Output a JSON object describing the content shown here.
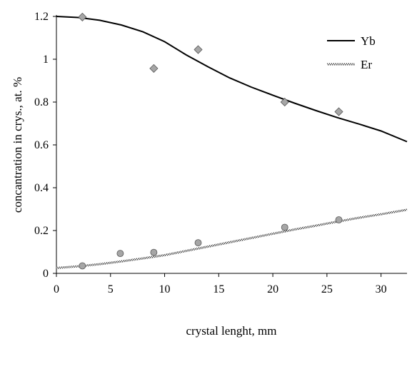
{
  "chart_data": {
    "type": "scatter",
    "title": "",
    "xlabel": "crystal lenght, mm",
    "ylabel": "concantration in crys., at. %",
    "xlim": [
      0,
      32.4
    ],
    "ylim": [
      0,
      1.2
    ],
    "xticks": [
      0,
      5,
      10,
      15,
      20,
      25,
      30
    ],
    "xtick_labels": [
      "0",
      "5",
      "10",
      "15",
      "20",
      "25",
      "30"
    ],
    "yticks": [
      0,
      0.2,
      0.4,
      0.6,
      0.8,
      1,
      1.2
    ],
    "ytick_labels": [
      "0",
      "0.2",
      "0.4",
      "0.6",
      "0.8",
      "1",
      "1.2"
    ],
    "grid": false,
    "legend_position": "top-right",
    "legend": [
      {
        "label": "Yb",
        "series": "Yb-fit"
      },
      {
        "label": "Er",
        "series": "Er-fit"
      }
    ],
    "series": [
      {
        "id": "Yb-data",
        "kind": "scatter",
        "marker": "diamond",
        "color": "#a6a6a6",
        "x": [
          2.4,
          9.0,
          13.1,
          21.1,
          26.1
        ],
        "y": [
          1.197,
          0.957,
          1.045,
          0.8,
          0.755
        ]
      },
      {
        "id": "Er-data",
        "kind": "scatter",
        "marker": "circle",
        "color": "#a6a6a6",
        "x": [
          2.4,
          5.9,
          9.0,
          13.1,
          21.1,
          26.1
        ],
        "y": [
          0.035,
          0.093,
          0.098,
          0.143,
          0.215,
          0.25
        ]
      },
      {
        "id": "Yb-fit",
        "kind": "line",
        "style": "solid",
        "color": "#000000",
        "x": [
          0,
          2,
          4,
          6,
          8,
          10,
          12,
          14,
          16,
          18,
          20,
          22,
          24,
          26,
          28,
          30,
          32.4
        ],
        "y": [
          1.2,
          1.195,
          1.182,
          1.16,
          1.128,
          1.082,
          1.02,
          0.965,
          0.913,
          0.87,
          0.832,
          0.795,
          0.76,
          0.727,
          0.697,
          0.665,
          0.615
        ]
      },
      {
        "id": "Er-fit",
        "kind": "line",
        "style": "textured",
        "color": "#555555",
        "x": [
          0,
          2,
          4,
          6,
          8,
          10,
          12,
          14,
          16,
          18,
          20,
          22,
          24,
          26,
          28,
          30,
          32.4
        ],
        "y": [
          0.025,
          0.033,
          0.043,
          0.056,
          0.07,
          0.085,
          0.105,
          0.125,
          0.145,
          0.165,
          0.185,
          0.205,
          0.223,
          0.242,
          0.26,
          0.276,
          0.297
        ]
      }
    ]
  }
}
